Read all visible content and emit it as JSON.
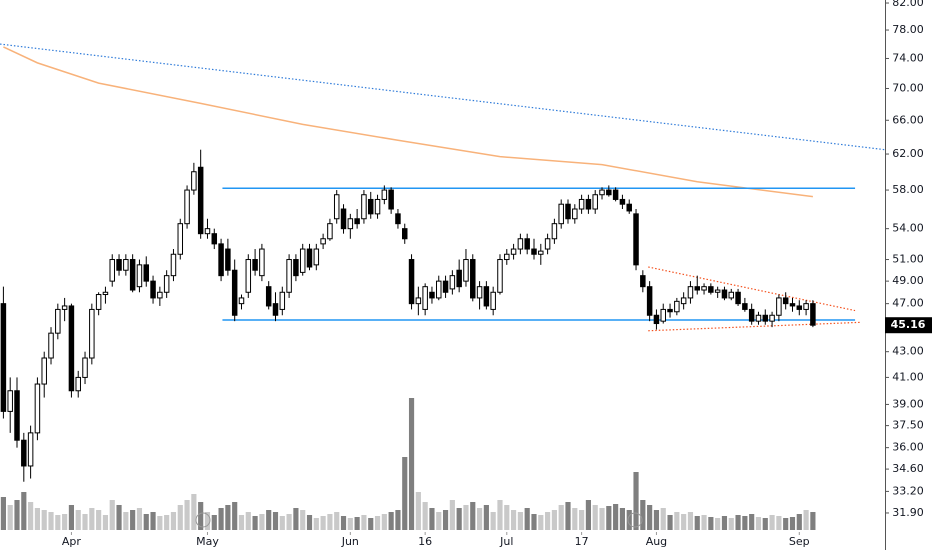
{
  "chart_data": {
    "type": "candlestick",
    "open": [
      47,
      38.5,
      40,
      36.5,
      34.8,
      37,
      40.5,
      42.5,
      44.5,
      46.5,
      46.8,
      40,
      41,
      42.5,
      46.5,
      47.8,
      49,
      51,
      50,
      51,
      48.5,
      50.5,
      49,
      47.5,
      48,
      49.5,
      51.5,
      54.5,
      58,
      60.5,
      53.5,
      53.5,
      52.5,
      52,
      50,
      47,
      48,
      51,
      49.5,
      48.5,
      47,
      46.5,
      48,
      51,
      49.8,
      52,
      50.5,
      52.5,
      53,
      55,
      56,
      54,
      55,
      55,
      57,
      55.5,
      57,
      58,
      55.5,
      54,
      51,
      47,
      46.5,
      48,
      47.5,
      49,
      48.3,
      50,
      49,
      51,
      47.5,
      48.5,
      46.5,
      48,
      51,
      51.5,
      52,
      53,
      52,
      51.5,
      52,
      53,
      54.5,
      56.5,
      55,
      56,
      57,
      56,
      57.5,
      58,
      58,
      57,
      56.5,
      55.5,
      49.5,
      48.5,
      46,
      45.5,
      46.5,
      46.3,
      47,
      47.5,
      48.5,
      48.2,
      48.5,
      48,
      48.2,
      47.5,
      48,
      47,
      46.5,
      45.5,
      46,
      45.5,
      46,
      47.5,
      47,
      46.8,
      46.5,
      47
    ],
    "high": [
      48.5,
      41,
      41,
      37,
      37.5,
      41,
      43,
      45,
      47,
      47.5,
      47,
      41.5,
      43,
      47,
      48,
      48.5,
      51.5,
      51.5,
      51.5,
      51.5,
      51,
      51.3,
      49.5,
      48.5,
      50,
      52,
      55,
      58.5,
      61,
      62.5,
      55,
      54,
      53,
      53,
      51,
      47.8,
      51.5,
      52,
      52.5,
      49,
      48,
      48.5,
      51.5,
      51.5,
      52.5,
      52.5,
      52.5,
      53.5,
      55,
      58,
      56.5,
      55.5,
      56,
      58,
      57.8,
      57.5,
      58.5,
      58.3,
      56,
      54.5,
      51.5,
      48.5,
      48.8,
      48.5,
      49.5,
      49.5,
      50,
      51,
      52,
      51.5,
      49,
      49,
      48.5,
      51.5,
      52,
      52.5,
      53.5,
      53.5,
      53,
      52.5,
      53.5,
      55,
      57,
      57,
      56.5,
      57.5,
      57.5,
      58,
      58.3,
      58.5,
      58.3,
      57.5,
      57,
      56,
      50,
      49,
      46.5,
      47,
      47,
      47.5,
      48,
      49,
      49.5,
      48.8,
      48.8,
      48.5,
      48.5,
      48.3,
      48.3,
      47.5,
      47,
      46.3,
      46.5,
      46.3,
      47.8,
      48,
      47.5,
      47.3,
      47.3,
      47.3
    ],
    "low": [
      38,
      37,
      36,
      33.8,
      34,
      36.5,
      39.5,
      42,
      44,
      45.5,
      39.5,
      39.5,
      40.5,
      42,
      46,
      47,
      48.5,
      49.5,
      49.5,
      48,
      48,
      48.5,
      47,
      46.8,
      47.5,
      49,
      51,
      54,
      57.5,
      53,
      53,
      52,
      49,
      49.5,
      45.5,
      46.5,
      47.5,
      49.5,
      49,
      46.5,
      45.5,
      46,
      47.5,
      49,
      49.5,
      50,
      50,
      52,
      52.8,
      54.5,
      53.5,
      53,
      54,
      54.5,
      55,
      55,
      56.5,
      55.5,
      54,
      52.5,
      46.5,
      46,
      46,
      47,
      47.3,
      47.5,
      47.8,
      48,
      48.5,
      47.2,
      46.5,
      46.5,
      46,
      47.8,
      50.5,
      51,
      51.5,
      51.5,
      51,
      50.5,
      51.5,
      52.5,
      54,
      54.5,
      54.5,
      55.5,
      55.5,
      55.5,
      57,
      57.3,
      56.8,
      56,
      55.5,
      50,
      48,
      45.5,
      44.8,
      45.3,
      45.8,
      46,
      46.5,
      47,
      47.8,
      47.8,
      47.8,
      47.5,
      47.3,
      47.3,
      46.8,
      46.3,
      45.2,
      45.2,
      45.2,
      45,
      45.5,
      46.5,
      46.3,
      46,
      46,
      45
    ],
    "close": [
      38.5,
      40,
      36.5,
      34.8,
      37,
      40.5,
      42.5,
      44.5,
      46.5,
      46.8,
      40,
      41,
      42.5,
      46.5,
      47.8,
      48,
      51,
      50,
      51,
      48.2,
      50.5,
      49,
      47.5,
      48,
      49.5,
      51.5,
      54.5,
      58,
      60,
      53.5,
      54,
      52.5,
      49.5,
      50,
      46,
      47.5,
      51,
      50,
      52,
      46.8,
      46,
      48,
      51,
      49.5,
      52,
      50.3,
      52,
      53,
      54.5,
      57.5,
      54,
      55,
      54.5,
      57.5,
      55.5,
      57,
      58,
      56,
      54.5,
      53,
      47,
      47.5,
      48.5,
      47.5,
      49,
      48,
      49.5,
      48.5,
      51,
      47.5,
      48.5,
      46.8,
      48,
      51,
      51.5,
      52,
      53,
      52,
      51.5,
      51.8,
      53,
      54.5,
      56.5,
      55,
      56,
      57,
      56,
      57.5,
      58,
      57.5,
      57,
      56.5,
      55.8,
      50.5,
      48.5,
      46,
      45.3,
      46.5,
      46.3,
      47.2,
      47.5,
      48.5,
      48.2,
      48.5,
      48,
      48.2,
      47.5,
      48,
      47,
      46.5,
      45.5,
      46,
      45.5,
      46,
      47.5,
      47,
      46.8,
      46.5,
      47,
      45.16
    ],
    "volume": [
      33,
      25,
      30,
      38,
      28,
      22,
      20,
      18,
      15,
      16,
      25,
      20,
      16,
      22,
      20,
      15,
      30,
      25,
      18,
      20,
      22,
      16,
      18,
      14,
      15,
      18,
      25,
      30,
      36,
      28,
      18,
      15,
      22,
      25,
      28,
      15,
      18,
      14,
      16,
      20,
      18,
      14,
      16,
      22,
      20,
      15,
      12,
      14,
      16,
      18,
      14,
      12,
      13,
      15,
      12,
      14,
      16,
      18,
      20,
      73,
      132,
      38,
      28,
      22,
      18,
      20,
      30,
      22,
      25,
      28,
      22,
      25,
      18,
      30,
      25,
      20,
      18,
      22,
      16,
      15,
      18,
      20,
      25,
      28,
      22,
      20,
      30,
      25,
      22,
      24,
      26,
      22,
      20,
      58,
      30,
      25,
      20,
      22,
      15,
      18,
      16,
      18,
      14,
      15,
      13,
      12,
      14,
      12,
      15,
      14,
      16,
      13,
      12,
      15,
      14,
      12,
      13,
      16,
      20,
      18
    ],
    "volume_lim": [
      0,
      175
    ],
    "up_color": "#ffffff",
    "down_color": "#000000",
    "volume_up_color": "#c9c9c9",
    "volume_down_color": "#7f7f7f",
    "last_price": 45.16,
    "log_scale": true,
    "grid": false,
    "xlim": [
      -0.5,
      129.6
    ],
    "ylim": [
      30.91,
      82.46
    ],
    "yticks": [
      {
        "value": 82,
        "label": "82.00"
      },
      {
        "value": 78,
        "label": "78.00"
      },
      {
        "value": 74,
        "label": "74.00"
      },
      {
        "value": 70,
        "label": "70.00"
      },
      {
        "value": 66,
        "label": "66.00"
      },
      {
        "value": 62,
        "label": "62.00"
      },
      {
        "value": 58,
        "label": "58.00"
      },
      {
        "value": 54,
        "label": "54.00"
      },
      {
        "value": 51,
        "label": "51.00"
      },
      {
        "value": 49,
        "label": "49.00"
      },
      {
        "value": 47,
        "label": "47.00"
      },
      {
        "value": 43,
        "label": "43.00"
      },
      {
        "value": 41,
        "label": "41.00"
      },
      {
        "value": 39,
        "label": "39.00"
      },
      {
        "value": 37.5,
        "label": "37.50"
      },
      {
        "value": 36,
        "label": "36.00"
      },
      {
        "value": 34.6,
        "label": "34.60"
      },
      {
        "value": 33.2,
        "label": "33.20"
      },
      {
        "value": 31.9,
        "label": "31.90"
      }
    ],
    "xticks": [
      {
        "value": 10,
        "label": "Apr"
      },
      {
        "value": 30,
        "label": "May"
      },
      {
        "value": 51,
        "label": "Jun"
      },
      {
        "value": 62,
        "label": "16"
      },
      {
        "value": 74,
        "label": "Jul"
      },
      {
        "value": 85,
        "label": "17"
      },
      {
        "value": 96,
        "label": "Aug"
      },
      {
        "value": 117,
        "label": "Sep"
      }
    ],
    "overlays": [
      {
        "color": "#f8b27a",
        "style": "solid",
        "x": [
          0,
          5,
          14,
          29,
          44,
          58,
          73,
          88,
          102,
          119
        ],
        "y": [
          75.6,
          73.4,
          70.7,
          68.1,
          65.5,
          63.6,
          61.7,
          60.8,
          58.9,
          57.3
        ]
      },
      {
        "color": "#2f7bd9",
        "style": "dotted",
        "x": [
          -0.5,
          129.6
        ],
        "y": [
          76,
          62.5
        ]
      },
      {
        "color": "#2196f3",
        "style": "solid",
        "x": [
          32.2,
          125.2
        ],
        "y": [
          58.2,
          58.2
        ]
      },
      {
        "color": "#2196f3",
        "style": "solid",
        "x": [
          32.2,
          125.2
        ],
        "y": [
          45.6,
          45.6
        ]
      },
      {
        "color": "#f4511e",
        "style": "dotted",
        "x": [
          94.8,
          125.2
        ],
        "y": [
          50.3,
          46.4
        ]
      },
      {
        "color": "#f4511e",
        "style": "dotted",
        "x": [
          94.8,
          125.9
        ],
        "y": [
          44.7,
          45.4
        ]
      }
    ]
  }
}
